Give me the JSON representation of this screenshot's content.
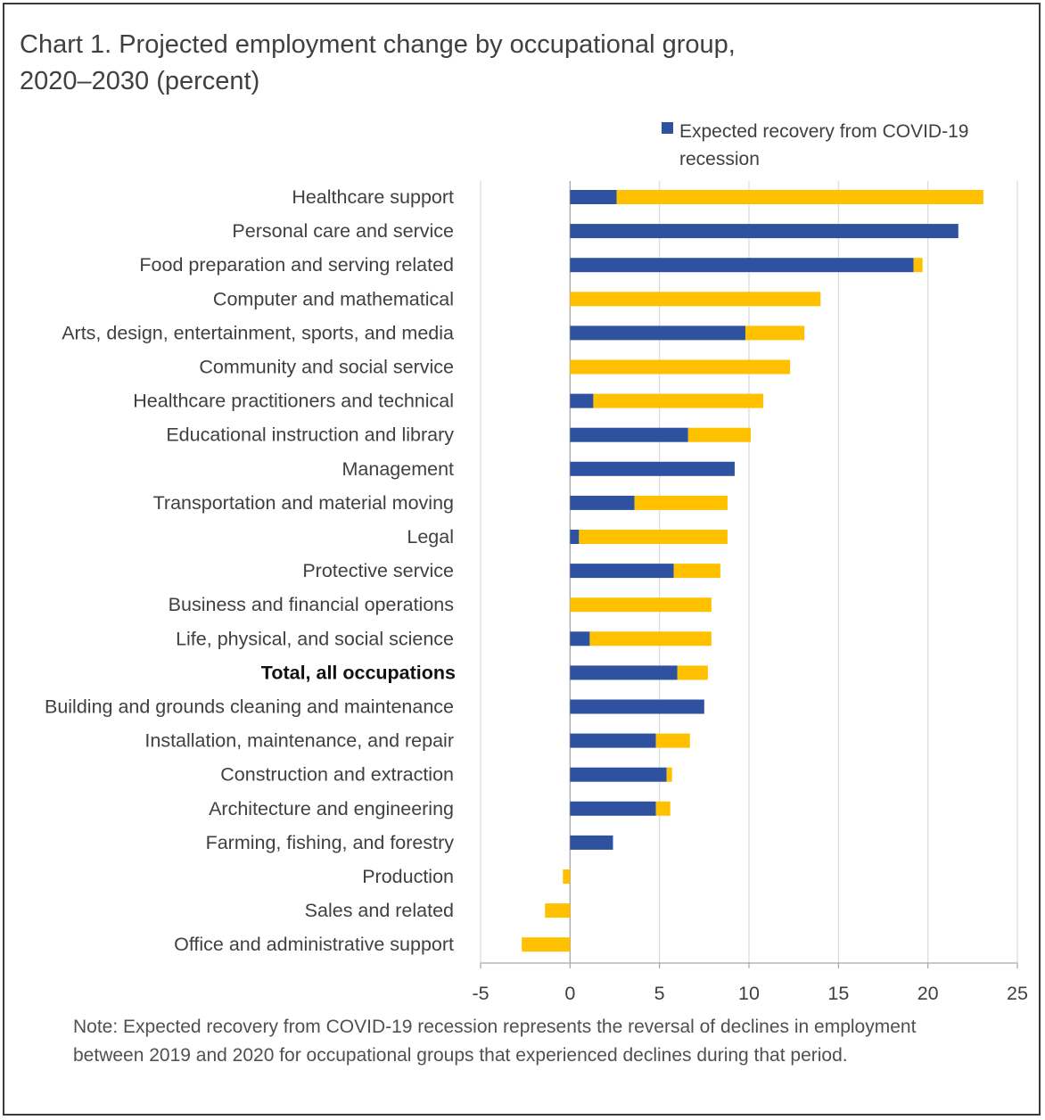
{
  "title_line1": "Chart 1. Projected employment change by occupational group,",
  "title_line2": "2020–2030 (percent)",
  "note": "Note: Expected recovery from COVID-19 recession represents the reversal of declines in employment between 2019 and 2020 for occupational groups that experienced declines during that period.",
  "colors": {
    "recovery": "#2f52a0",
    "other": "#ffc000",
    "grid": "#d9d9d9",
    "axis": "#a6a6a6"
  },
  "chart_data": {
    "type": "bar",
    "orientation": "horizontal",
    "stacked": true,
    "title": "Chart 1. Projected employment change by occupational group, 2020–2030 (percent)",
    "xlim": [
      -5,
      25
    ],
    "xticks": [
      -5,
      0,
      5,
      10,
      15,
      20,
      25
    ],
    "grid": true,
    "legend_position": "top-right",
    "legend": [
      "Expected recovery from COVID-19 recession"
    ],
    "categories": [
      "Healthcare support",
      "Personal care and service",
      "Food preparation and serving related",
      "Computer and mathematical",
      "Arts, design, entertainment, sports, and media",
      "Community and social service",
      "Healthcare practitioners and technical",
      "Educational instruction and library",
      "Management",
      "Transportation and material moving",
      "Legal",
      "Protective service",
      "Business and financial operations",
      "Life, physical, and social science",
      "Total, all occupations",
      "Building and grounds cleaning and maintenance",
      "Installation, maintenance, and repair",
      "Construction and extraction",
      "Architecture and engineering",
      "Farming, fishing, and forestry",
      "Production",
      "Sales and related",
      "Office and administrative support"
    ],
    "bold_categories": [
      "Total, all occupations"
    ],
    "series": [
      {
        "name": "Expected recovery from COVID-19 recession",
        "color": "#2f52a0",
        "values": [
          2.6,
          21.7,
          19.2,
          0,
          9.8,
          0,
          1.3,
          6.6,
          9.2,
          3.6,
          0.5,
          5.8,
          0,
          1.1,
          6.0,
          7.5,
          4.8,
          5.4,
          4.8,
          2.4,
          0,
          0,
          0
        ]
      },
      {
        "name": "",
        "color": "#ffc000",
        "values": [
          20.5,
          0,
          0.5,
          14.0,
          3.3,
          12.3,
          9.5,
          3.5,
          0,
          5.2,
          8.3,
          2.6,
          7.9,
          6.8,
          1.7,
          0,
          1.9,
          0.3,
          0.8,
          0,
          -0.4,
          -1.4,
          -2.7
        ]
      }
    ]
  }
}
